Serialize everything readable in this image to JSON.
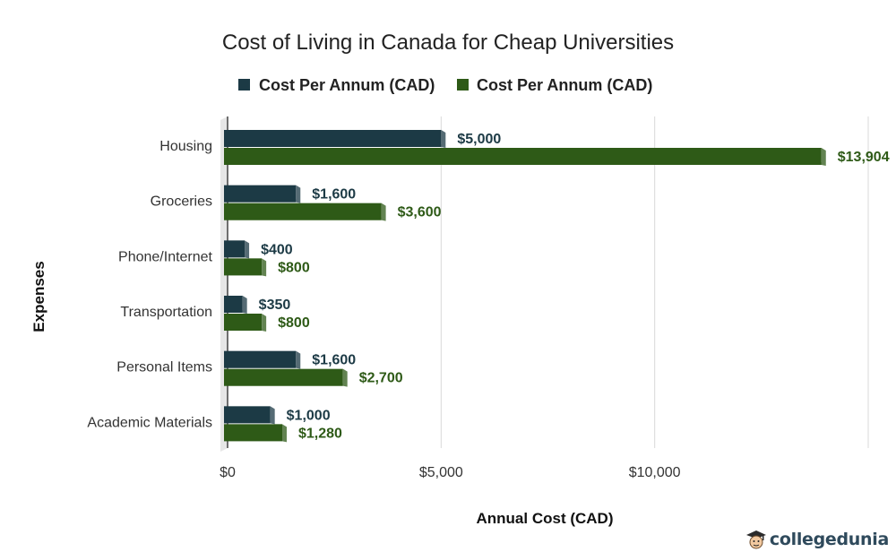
{
  "chart_data": {
    "type": "bar",
    "orientation": "horizontal",
    "title": "Cost of Living in Canada for Cheap Universities",
    "xlabel": "Annual Cost (CAD)",
    "ylabel": "Expenses",
    "categories": [
      "Housing",
      "Groceries",
      "Phone/Internet",
      "Transportation",
      "Personal Items",
      "Academic Materials"
    ],
    "series": [
      {
        "name": "Cost Per Annum (CAD)",
        "color": "#1c3a45",
        "values": [
          5000,
          1600,
          400,
          350,
          1600,
          1000
        ],
        "labels": [
          "$5,000",
          "$1,600",
          "$400",
          "$350",
          "$1,600",
          "$1,000"
        ]
      },
      {
        "name": "Cost Per Annum (CAD)",
        "color": "#2e5a17",
        "values": [
          13904,
          3600,
          800,
          800,
          2700,
          1280
        ],
        "labels": [
          "$13,904",
          "$3,600",
          "$800",
          "$800",
          "$2,700",
          "$1,280"
        ]
      }
    ],
    "xlim": [
      0,
      15000
    ],
    "xticks": [
      0,
      5000,
      10000
    ],
    "xtick_labels": [
      "$0",
      "$5,000",
      "$10,000"
    ],
    "grid": true,
    "legend_position": "top"
  },
  "branding": {
    "watermark_text": "collegedunia",
    "watermark_icon": "graduate-mascot-icon"
  }
}
